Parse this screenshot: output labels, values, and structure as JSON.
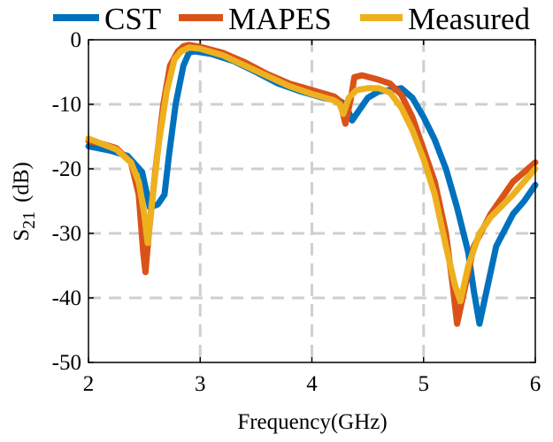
{
  "chart_data": {
    "type": "line",
    "title": "",
    "xlabel": "Frequency(GHz)",
    "ylabel": {
      "main": "S",
      "subscript": "21",
      "unit": "(dB)"
    },
    "xlim": [
      2,
      6
    ],
    "ylim": [
      -50,
      0
    ],
    "xticks": [
      2,
      3,
      4,
      5,
      6
    ],
    "yticks": [
      0,
      -10,
      -20,
      -30,
      -40,
      -50
    ],
    "grid": true,
    "legend_position": "top",
    "series": [
      {
        "name": "CST",
        "color": "#0072BD",
        "points": [
          [
            2.0,
            -16.5
          ],
          [
            2.2,
            -17.2
          ],
          [
            2.35,
            -18.0
          ],
          [
            2.48,
            -20.5
          ],
          [
            2.55,
            -26.0
          ],
          [
            2.62,
            -25.5
          ],
          [
            2.68,
            -24.0
          ],
          [
            2.72,
            -18.0
          ],
          [
            2.78,
            -10.0
          ],
          [
            2.85,
            -4.0
          ],
          [
            2.9,
            -2.0
          ],
          [
            2.95,
            -1.8
          ],
          [
            3.1,
            -2.2
          ],
          [
            3.3,
            -3.3
          ],
          [
            3.5,
            -5.0
          ],
          [
            3.7,
            -6.8
          ],
          [
            3.9,
            -8.0
          ],
          [
            4.1,
            -9.0
          ],
          [
            4.25,
            -9.5
          ],
          [
            4.3,
            -10.0
          ],
          [
            4.36,
            -12.5
          ],
          [
            4.42,
            -11.0
          ],
          [
            4.5,
            -9.0
          ],
          [
            4.6,
            -8.0
          ],
          [
            4.7,
            -7.8
          ],
          [
            4.8,
            -7.5
          ],
          [
            4.9,
            -9.0
          ],
          [
            5.0,
            -12.0
          ],
          [
            5.1,
            -15.5
          ],
          [
            5.2,
            -20.0
          ],
          [
            5.3,
            -26.0
          ],
          [
            5.4,
            -33.0
          ],
          [
            5.45,
            -39.0
          ],
          [
            5.5,
            -44.0
          ],
          [
            5.55,
            -40.0
          ],
          [
            5.65,
            -32.0
          ],
          [
            5.8,
            -27.0
          ],
          [
            5.9,
            -25.0
          ],
          [
            6.0,
            -22.5
          ]
        ]
      },
      {
        "name": "MAPES",
        "color": "#D95319",
        "points": [
          [
            2.0,
            -15.7
          ],
          [
            2.1,
            -16.0
          ],
          [
            2.25,
            -16.8
          ],
          [
            2.38,
            -19.0
          ],
          [
            2.45,
            -24.0
          ],
          [
            2.49,
            -33.0
          ],
          [
            2.51,
            -36.0
          ],
          [
            2.54,
            -30.0
          ],
          [
            2.6,
            -20.0
          ],
          [
            2.67,
            -10.0
          ],
          [
            2.73,
            -4.0
          ],
          [
            2.8,
            -1.8
          ],
          [
            2.85,
            -1.0
          ],
          [
            2.9,
            -0.8
          ],
          [
            3.0,
            -1.1
          ],
          [
            3.2,
            -2.0
          ],
          [
            3.4,
            -3.5
          ],
          [
            3.6,
            -5.3
          ],
          [
            3.8,
            -6.8
          ],
          [
            4.0,
            -7.8
          ],
          [
            4.2,
            -8.8
          ],
          [
            4.25,
            -9.5
          ],
          [
            4.3,
            -13.0
          ],
          [
            4.35,
            -9.0
          ],
          [
            4.38,
            -5.8
          ],
          [
            4.45,
            -5.5
          ],
          [
            4.6,
            -6.2
          ],
          [
            4.7,
            -6.8
          ],
          [
            4.8,
            -8.5
          ],
          [
            4.9,
            -12.0
          ],
          [
            5.0,
            -17.0
          ],
          [
            5.1,
            -22.0
          ],
          [
            5.2,
            -30.0
          ],
          [
            5.26,
            -38.0
          ],
          [
            5.3,
            -44.0
          ],
          [
            5.35,
            -40.0
          ],
          [
            5.45,
            -32.0
          ],
          [
            5.6,
            -27.0
          ],
          [
            5.8,
            -22.0
          ],
          [
            6.0,
            -19.0
          ]
        ]
      },
      {
        "name": "Measured",
        "color": "#EDB120",
        "points": [
          [
            2.0,
            -15.3
          ],
          [
            2.1,
            -16.0
          ],
          [
            2.25,
            -17.0
          ],
          [
            2.38,
            -19.0
          ],
          [
            2.45,
            -22.0
          ],
          [
            2.5,
            -27.0
          ],
          [
            2.53,
            -31.5
          ],
          [
            2.57,
            -25.0
          ],
          [
            2.63,
            -16.0
          ],
          [
            2.7,
            -8.0
          ],
          [
            2.77,
            -3.0
          ],
          [
            2.83,
            -1.8
          ],
          [
            2.9,
            -1.2
          ],
          [
            3.0,
            -1.4
          ],
          [
            3.2,
            -2.4
          ],
          [
            3.4,
            -4.0
          ],
          [
            3.6,
            -5.6
          ],
          [
            3.8,
            -7.2
          ],
          [
            4.0,
            -8.4
          ],
          [
            4.2,
            -9.4
          ],
          [
            4.25,
            -10.0
          ],
          [
            4.28,
            -11.5
          ],
          [
            4.33,
            -9.0
          ],
          [
            4.4,
            -7.8
          ],
          [
            4.5,
            -7.5
          ],
          [
            4.6,
            -7.5
          ],
          [
            4.7,
            -8.2
          ],
          [
            4.8,
            -10.5
          ],
          [
            4.9,
            -14.0
          ],
          [
            5.0,
            -18.5
          ],
          [
            5.1,
            -24.0
          ],
          [
            5.2,
            -32.0
          ],
          [
            5.28,
            -38.0
          ],
          [
            5.33,
            -40.5
          ],
          [
            5.4,
            -35.0
          ],
          [
            5.5,
            -30.0
          ],
          [
            5.6,
            -27.5
          ],
          [
            5.8,
            -24.0
          ],
          [
            6.0,
            -20.0
          ]
        ]
      }
    ]
  }
}
